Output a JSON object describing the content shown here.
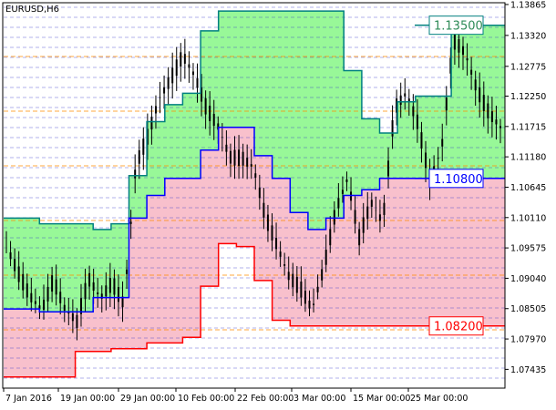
{
  "window": {
    "symbol_label": "EURUSD,H6"
  },
  "colors": {
    "background": "#ffffff",
    "upper_fill": "#98f898",
    "lower_fill": "#f8c0cc",
    "upper_line": "#008080",
    "middle_line": "#0000ff",
    "lower_line": "#ff0000",
    "candles": "#000000",
    "grid_blue": "#3333cc",
    "grid_orange": "#ff8c00",
    "upper_label_text": "#2e8b57",
    "middle_label_text": "#0000ff",
    "lower_label_text": "#ff0000"
  },
  "chart_data": {
    "type": "line",
    "title": "EURUSD,H6",
    "xlabel": "",
    "ylabel": "",
    "ylim": [
      1.0712,
      1.1388
    ],
    "x_ticks": [
      "7 Jan 2016",
      "19 Jan 00:00",
      "29 Jan 00:00",
      "10 Feb 00:00",
      "22 Feb 00:00",
      "3 Mar 00:00",
      "15 Mar 00:00",
      "25 Mar 00:00"
    ],
    "y_ticks": [
      "1.13865",
      "1.13320",
      "1.12775",
      "1.12250",
      "1.11715",
      "1.11180",
      "1.10645",
      "1.10110",
      "1.09575",
      "1.09040",
      "1.08505",
      "1.07970",
      "1.07435"
    ],
    "level_labels": [
      {
        "name": "upper",
        "value": "1.13500"
      },
      {
        "name": "middle",
        "value": "1.10800"
      },
      {
        "name": "lower",
        "value": "1.08200"
      }
    ],
    "series": [
      {
        "name": "upper",
        "values": [
          1.101,
          1.101,
          1.1,
          1.1,
          1.1,
          1.099,
          1.1,
          1.1085,
          1.118,
          1.121,
          1.123,
          1.134,
          1.1375,
          1.1375,
          1.1375,
          1.1375,
          1.1375,
          1.1375,
          1.1375,
          1.127,
          1.1185,
          1.116,
          1.1215,
          1.1225,
          1.1225,
          1.1335,
          1.135,
          1.135,
          1.135
        ]
      },
      {
        "name": "middle",
        "values": [
          1.085,
          1.085,
          1.0845,
          1.0845,
          1.0845,
          1.087,
          1.087,
          1.101,
          1.105,
          1.108,
          1.108,
          1.113,
          1.117,
          1.117,
          1.112,
          1.108,
          1.102,
          1.099,
          1.101,
          1.105,
          1.106,
          1.108,
          1.108,
          1.108,
          1.108,
          1.108,
          1.108,
          1.108,
          1.108
        ]
      },
      {
        "name": "lower",
        "values": [
          1.073,
          1.073,
          1.073,
          1.073,
          1.0775,
          1.0775,
          1.078,
          1.078,
          1.079,
          1.079,
          1.08,
          1.089,
          1.0965,
          1.096,
          1.09,
          1.083,
          1.082,
          1.082,
          1.082,
          1.082,
          1.082,
          1.082,
          1.082,
          1.082,
          1.082,
          1.082,
          1.082,
          1.082,
          1.082
        ]
      },
      {
        "name": "price",
        "values": [
          1.096,
          1.091,
          1.087,
          1.085,
          1.0905,
          1.085,
          1.0825,
          1.09,
          1.087,
          1.09,
          1.086,
          1.11,
          1.115,
          1.122,
          1.126,
          1.13,
          1.126,
          1.12,
          1.117,
          1.112,
          1.112,
          1.11,
          1.101,
          1.096,
          1.091,
          1.089,
          1.085,
          1.092,
          1.102,
          1.108,
          1.098,
          1.104,
          1.1,
          1.12,
          1.123,
          1.118,
          1.108,
          1.113,
          1.132,
          1.13,
          1.124,
          1.12,
          1.117
        ]
      }
    ]
  }
}
